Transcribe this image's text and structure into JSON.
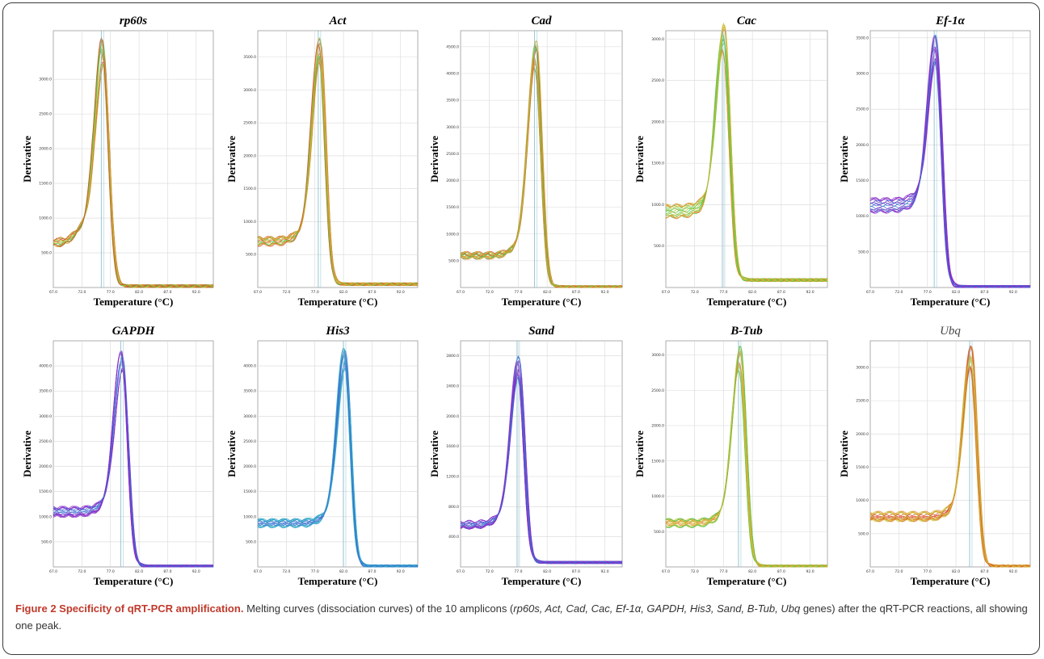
{
  "figure": {
    "caption_label": "Figure 2 Specificity of qRT-PCR amplification.",
    "caption_lead": "Melting curves (dissociation curves) of the 10 amplicons (",
    "caption_genes": "rp60s, Act, Cad, Cac, Ef-1α, GAPDH, His3, Sand, B-Tub, Ubq",
    "caption_tail": " genes) after the qRT-PCR reactions, all showing one peak."
  },
  "colors": {
    "green": "#5bc94a",
    "yellow_green": "#c9c23a",
    "orange": "#e08a2a",
    "red": "#d94a2a",
    "purple": "#8a2fc9",
    "blue": "#3a6fd0",
    "cyan": "#35a9c9",
    "guide": "#7fb8c9",
    "grid": "#d8d8d8",
    "caption_title": "#c0392b"
  },
  "chart_data": [
    {
      "type": "line",
      "title": "rp60s",
      "xlabel": "Temperature (°C)",
      "ylabel": "Derivative",
      "xticks": [
        "67.0",
        "72.0",
        "77.0",
        "82.0",
        "87.0",
        "92.0"
      ],
      "yticks": [
        "500.0",
        "1000.0",
        "1500.0",
        "2000.0",
        "2500.0",
        "3000.0"
      ],
      "xlim": [
        67,
        95
      ],
      "ylim": [
        0,
        3700
      ],
      "peak_x": 75.6,
      "peak_y": 3350,
      "baseline_left": 650,
      "baseline_right": 20,
      "shoulder": true,
      "grid": true,
      "series_colors": [
        "green",
        "red",
        "orange",
        "yellow_green"
      ]
    },
    {
      "type": "line",
      "title": "Act",
      "xlabel": "Temperature (°C)",
      "ylabel": "Derivative",
      "xticks": [
        "67.0",
        "72.0",
        "77.0",
        "82.0",
        "87.0",
        "92.0"
      ],
      "yticks": [
        "500.0",
        "1000.0",
        "1500.0",
        "2000.0",
        "2500.0",
        "3000.0",
        "3500.0"
      ],
      "xlim": [
        67,
        95
      ],
      "ylim": [
        0,
        3900
      ],
      "peak_x": 77.8,
      "peak_y": 3600,
      "baseline_left": 700,
      "baseline_right": 50,
      "shoulder": false,
      "grid": true,
      "series_colors": [
        "yellow_green",
        "orange",
        "red",
        "green"
      ]
    },
    {
      "type": "line",
      "title": "Cad",
      "xlabel": "Temperature (°C)",
      "ylabel": "Derivative",
      "xticks": [
        "67.0",
        "72.0",
        "77.0",
        "82.0",
        "87.0",
        "92.0"
      ],
      "yticks": [
        "500.0",
        "1000.0",
        "1500.0",
        "2000.0",
        "2500.0",
        "3000.0",
        "3500.0",
        "4000.0",
        "4500.0"
      ],
      "xlim": [
        67,
        95
      ],
      "ylim": [
        0,
        4800
      ],
      "peak_x": 80.0,
      "peak_y": 4350,
      "baseline_left": 600,
      "baseline_right": 10,
      "shoulder": false,
      "grid": true,
      "series_colors": [
        "green",
        "orange",
        "red",
        "yellow_green"
      ]
    },
    {
      "type": "line",
      "title": "Cac",
      "xlabel": "Temperature (°C)",
      "ylabel": "Derivative",
      "xticks": [
        "67.0",
        "72.0",
        "77.0",
        "82.0",
        "87.0",
        "92.0"
      ],
      "yticks": [
        "500.0",
        "1000.0",
        "1500.0",
        "2000.0",
        "2500.0",
        "3000.0"
      ],
      "xlim": [
        67,
        95
      ],
      "ylim": [
        0,
        3100
      ],
      "peak_x": 77.0,
      "peak_y": 3000,
      "baseline_left": 920,
      "baseline_right": 90,
      "shoulder": false,
      "grid": true,
      "series_colors": [
        "green",
        "yellow_green",
        "orange"
      ]
    },
    {
      "type": "line",
      "title": "Ef-1α",
      "xlabel": "Temperature (°C)",
      "ylabel": "Derivative",
      "xticks": [
        "67.0",
        "72.0",
        "77.0",
        "82.0",
        "87.0",
        "92.0"
      ],
      "yticks": [
        "500.0",
        "1000.0",
        "1500.0",
        "2000.0",
        "2500.0",
        "3000.0",
        "3500.0"
      ],
      "xlim": [
        67,
        95
      ],
      "ylim": [
        0,
        3600
      ],
      "peak_x": 78.4,
      "peak_y": 3350,
      "baseline_left": 1150,
      "baseline_right": 10,
      "shoulder": false,
      "grid": true,
      "series_colors": [
        "purple",
        "blue",
        "purple"
      ]
    },
    {
      "type": "line",
      "title": "GAPDH",
      "xlabel": "Temperature (°C)",
      "ylabel": "Derivative",
      "xticks": [
        "67.0",
        "72.0",
        "77.0",
        "82.0",
        "87.0",
        "92.0"
      ],
      "yticks": [
        "500.0",
        "1000.0",
        "1500.0",
        "2000.0",
        "2500.0",
        "3000.0",
        "3500.0",
        "4000.0"
      ],
      "xlim": [
        67,
        95
      ],
      "ylim": [
        0,
        4500
      ],
      "peak_x": 79.0,
      "peak_y": 4100,
      "baseline_left": 1100,
      "baseline_right": 15,
      "shoulder": false,
      "grid": true,
      "series_colors": [
        "purple",
        "blue",
        "purple"
      ]
    },
    {
      "type": "line",
      "title": "His3",
      "xlabel": "Temperature (°C)",
      "ylabel": "Derivative",
      "xticks": [
        "67.0",
        "72.0",
        "77.0",
        "82.0",
        "87.0",
        "92.0"
      ],
      "yticks": [
        "500.0",
        "1000.0",
        "1500.0",
        "2000.0",
        "2500.0",
        "3000.0",
        "3500.0",
        "4000.0"
      ],
      "xlim": [
        67,
        95
      ],
      "ylim": [
        0,
        4500
      ],
      "peak_x": 82.2,
      "peak_y": 4150,
      "baseline_left": 870,
      "baseline_right": 15,
      "shoulder": false,
      "grid": true,
      "series_colors": [
        "cyan",
        "blue",
        "cyan"
      ]
    },
    {
      "type": "line",
      "title": "Sand",
      "xlabel": "Temperature (°C)",
      "ylabel": "Derivative",
      "xticks": [
        "67.0",
        "72.0",
        "77.0",
        "82.0",
        "87.0",
        "92.0"
      ],
      "yticks": [
        "400.0",
        "800.0",
        "1200.0",
        "1600.0",
        "2000.0",
        "2400.0",
        "2800.0"
      ],
      "xlim": [
        67,
        95
      ],
      "ylim": [
        0,
        3000
      ],
      "peak_x": 77.0,
      "peak_y": 2650,
      "baseline_left": 560,
      "baseline_right": 60,
      "shoulder": false,
      "grid": true,
      "series_colors": [
        "purple",
        "blue",
        "purple"
      ]
    },
    {
      "type": "line",
      "title": "B-Tub",
      "xlabel": "Temperature (°C)",
      "ylabel": "Derivative",
      "xticks": [
        "67.0",
        "72.0",
        "77.0",
        "82.0",
        "87.0",
        "92.0"
      ],
      "yticks": [
        "500.0",
        "1000.0",
        "1500.0",
        "2000.0",
        "2500.0",
        "3000.0"
      ],
      "xlim": [
        67,
        95
      ],
      "ylim": [
        0,
        3200
      ],
      "peak_x": 79.8,
      "peak_y": 2950,
      "baseline_left": 620,
      "baseline_right": 10,
      "shoulder": false,
      "grid": true,
      "series_colors": [
        "green",
        "yellow_green",
        "orange"
      ]
    },
    {
      "type": "line",
      "title": "Ubq",
      "title_style": "plain",
      "xlabel": "Temperature (°C)",
      "ylabel": "Derivative",
      "xticks": [
        "67.0",
        "72.0",
        "77.0",
        "82.0",
        "87.0",
        "92.0"
      ],
      "yticks": [
        "500.0",
        "1000.0",
        "1500.0",
        "2000.0",
        "2500.0",
        "3000.0"
      ],
      "xlim": [
        67,
        95
      ],
      "ylim": [
        0,
        3400
      ],
      "peak_x": 84.6,
      "peak_y": 3150,
      "baseline_left": 760,
      "baseline_right": 10,
      "shoulder": false,
      "grid": true,
      "series_colors": [
        "orange",
        "yellow_green",
        "red"
      ]
    }
  ]
}
